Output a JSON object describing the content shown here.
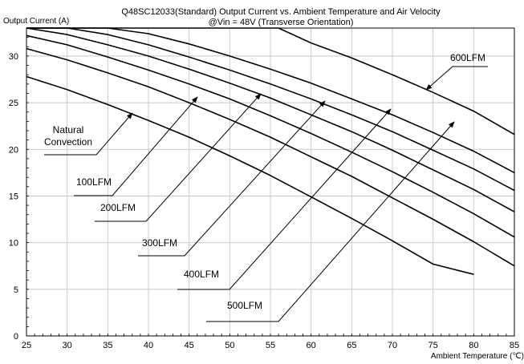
{
  "chart_data": {
    "type": "line",
    "title": "Q48SC12033(Standard)  Output Current vs. Ambient Temperature and Air Velocity",
    "subtitle": "@Vin = 48V (Transverse Orientation)",
    "ylabel": "Output Current (A)",
    "xlabel": "Ambient Temperature (℃)",
    "xlim": [
      25,
      85
    ],
    "ylim": [
      0,
      33
    ],
    "x_ticks": [
      "25",
      "30",
      "35",
      "40",
      "45",
      "50",
      "55",
      "60",
      "65",
      "70",
      "75",
      "80",
      "85"
    ],
    "y_ticks": [
      "0",
      "5",
      "10",
      "15",
      "20",
      "25",
      "30"
    ],
    "grid": true,
    "series": [
      {
        "name": "Natural Convection",
        "x": [
          25,
          30,
          35,
          40,
          45,
          50,
          55,
          60,
          65,
          70,
          75,
          80
        ],
        "y": [
          27.8,
          26.4,
          24.8,
          23.1,
          21.3,
          19.3,
          17.2,
          14.9,
          12.6,
          10.2,
          7.7,
          6.6
        ]
      },
      {
        "name": "100LFM",
        "x": [
          25,
          30,
          35,
          40,
          45,
          50,
          55,
          60,
          65,
          70,
          75,
          80,
          85
        ],
        "y": [
          30.8,
          29.6,
          28.2,
          26.7,
          25.0,
          23.2,
          21.3,
          19.2,
          17.1,
          14.8,
          12.5,
          10.1,
          7.5
        ]
      },
      {
        "name": "200LFM",
        "x": [
          25,
          30,
          35,
          40,
          45,
          50,
          55,
          60,
          65,
          70,
          75,
          80,
          85
        ],
        "y": [
          32.2,
          31.2,
          29.9,
          28.5,
          27.0,
          25.4,
          23.6,
          21.7,
          19.7,
          17.6,
          15.4,
          13.1,
          10.6
        ]
      },
      {
        "name": "300LFM",
        "x": [
          25,
          30,
          35,
          40,
          45,
          50,
          55,
          60,
          65,
          70,
          75,
          80,
          85
        ],
        "y": [
          33,
          32.3,
          31.2,
          30.0,
          28.6,
          27.1,
          25.5,
          23.7,
          21.9,
          19.9,
          17.8,
          15.7,
          13.3
        ]
      },
      {
        "name": "400LFM",
        "x": [
          25,
          30,
          35,
          40,
          45,
          50,
          55,
          60,
          65,
          70,
          75,
          80,
          85
        ],
        "y": [
          33,
          33,
          32.3,
          31.2,
          29.9,
          28.5,
          27.0,
          25.4,
          23.7,
          21.9,
          19.9,
          17.9,
          15.6
        ]
      },
      {
        "name": "500LFM",
        "x": [
          25,
          30,
          35,
          40,
          45,
          50,
          55,
          60,
          65,
          70,
          75,
          80,
          85
        ],
        "y": [
          33,
          33,
          33,
          32.4,
          31.3,
          30.0,
          28.6,
          27.1,
          25.4,
          23.7,
          21.8,
          19.8,
          17.5
        ]
      },
      {
        "name": "600LFM",
        "x": [
          25,
          30,
          35,
          40,
          45,
          50,
          55,
          56,
          60,
          65,
          70,
          75,
          80,
          85
        ],
        "y": [
          33,
          33,
          33,
          33,
          33,
          33,
          33,
          33,
          31.4,
          29.8,
          28.0,
          26.1,
          24.1,
          21.6
        ]
      }
    ],
    "annotations": [
      {
        "text": "Natural",
        "line2": "Convection"
      },
      {
        "text": "100LFM"
      },
      {
        "text": "200LFM"
      },
      {
        "text": "300LFM"
      },
      {
        "text": "400LFM"
      },
      {
        "text": "500LFM"
      },
      {
        "text": "600LFM"
      }
    ]
  }
}
